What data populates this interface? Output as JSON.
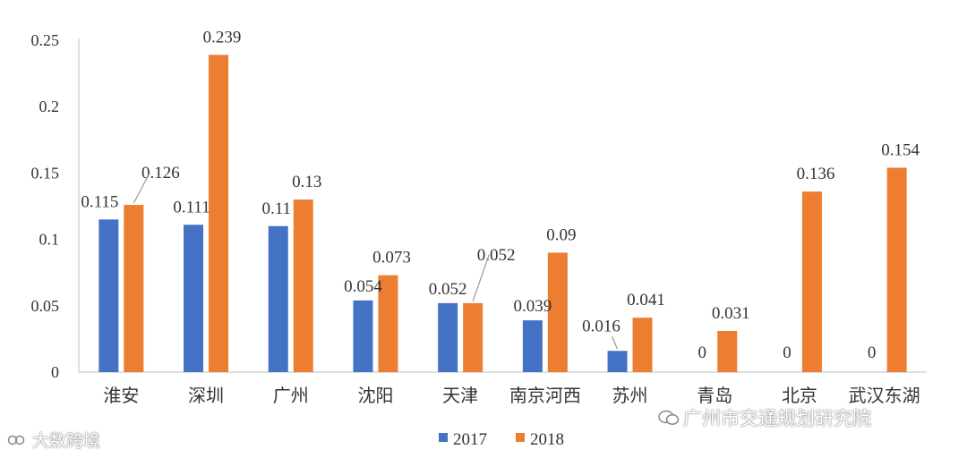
{
  "chart_data": {
    "type": "bar",
    "categories": [
      "淮安",
      "深圳",
      "广州",
      "沈阳",
      "天津",
      "南京河西",
      "苏州",
      "青岛",
      "北京",
      "武汉东湖"
    ],
    "series": [
      {
        "name": "2017",
        "color": "#4472c4",
        "values": [
          0.115,
          0.111,
          0.11,
          0.054,
          0.052,
          0.039,
          0.016,
          0,
          0,
          0
        ],
        "labels": [
          "0.115",
          "0.111",
          "0.11",
          "0.054",
          "0.052",
          "0.039",
          "0.016",
          "0",
          "0",
          "0"
        ]
      },
      {
        "name": "2018",
        "color": "#ed7d31",
        "values": [
          0.126,
          0.239,
          0.13,
          0.073,
          0.052,
          0.09,
          0.041,
          0.031,
          0.136,
          0.154
        ],
        "labels": [
          "0.126",
          "0.239",
          "0.13",
          "0.073",
          "0.052",
          "0.09",
          "0.041",
          "0.031",
          "0.136",
          "0.154"
        ]
      }
    ],
    "yticks": [
      "0",
      "0.05",
      "0.1",
      "0.15",
      "0.2",
      "0.25"
    ],
    "ylim": [
      0,
      0.25
    ],
    "legend_position": "bottom",
    "grid": false
  },
  "watermarks": {
    "right": "广州市交通规划研究院",
    "left": "大数跨境"
  }
}
